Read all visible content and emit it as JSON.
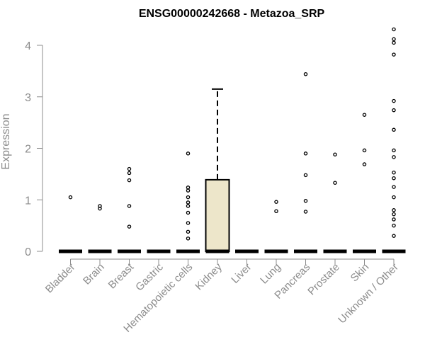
{
  "chart_data": {
    "type": "box",
    "title": "ENSG00000242668 - Metazoa_SRP",
    "xlabel": "",
    "ylabel": "Expression",
    "ylim": [
      0,
      4.3
    ],
    "yticks": [
      0,
      1,
      2,
      3,
      4
    ],
    "grid": false,
    "box_fill": "#ede6ca",
    "categories": [
      "Bladder",
      "Brain",
      "Breast",
      "Gastric",
      "Hematopoietic cells",
      "Kidney",
      "Liver",
      "Lung",
      "Pancreas",
      "Prostate",
      "Skin",
      "Unknown / Other"
    ],
    "boxes": [
      {
        "q1": 0,
        "median": 0,
        "q3": 0,
        "whisker_high": 0,
        "outliers": [
          1.05
        ]
      },
      {
        "q1": 0,
        "median": 0,
        "q3": 0,
        "whisker_high": 0,
        "outliers": [
          0.83,
          0.88
        ]
      },
      {
        "q1": 0,
        "median": 0,
        "q3": 0,
        "whisker_high": 0,
        "outliers": [
          0.48,
          0.88,
          1.38,
          1.52,
          1.6
        ]
      },
      {
        "q1": 0,
        "median": 0,
        "q3": 0,
        "whisker_high": 0,
        "outliers": []
      },
      {
        "q1": 0,
        "median": 0,
        "q3": 0,
        "whisker_high": 0,
        "outliers": [
          0.25,
          0.38,
          0.55,
          0.75,
          0.88,
          0.95,
          1.05,
          1.18,
          1.24,
          1.9
        ]
      },
      {
        "q1": 0,
        "median": 0,
        "q3": 1.39,
        "whisker_high": 3.15,
        "outliers": []
      },
      {
        "q1": 0,
        "median": 0,
        "q3": 0,
        "whisker_high": 0,
        "outliers": []
      },
      {
        "q1": 0,
        "median": 0,
        "q3": 0,
        "whisker_high": 0,
        "outliers": [
          0.78,
          0.96
        ]
      },
      {
        "q1": 0,
        "median": 0,
        "q3": 0,
        "whisker_high": 0,
        "outliers": [
          0.77,
          0.98,
          1.48,
          1.9,
          3.44
        ]
      },
      {
        "q1": 0,
        "median": 0,
        "q3": 0,
        "whisker_high": 0,
        "outliers": [
          1.33,
          1.88
        ]
      },
      {
        "q1": 0,
        "median": 0,
        "q3": 0,
        "whisker_high": 0,
        "outliers": [
          1.69,
          1.96,
          2.65
        ]
      },
      {
        "q1": 0,
        "median": 0,
        "q3": 0,
        "whisker_high": 0,
        "outliers": [
          0.3,
          0.5,
          0.62,
          0.72,
          0.8,
          1.05,
          1.25,
          1.42,
          1.53,
          1.83,
          1.96,
          2.36,
          2.74,
          2.92,
          3.82,
          4.05,
          4.12,
          4.31
        ]
      }
    ]
  }
}
